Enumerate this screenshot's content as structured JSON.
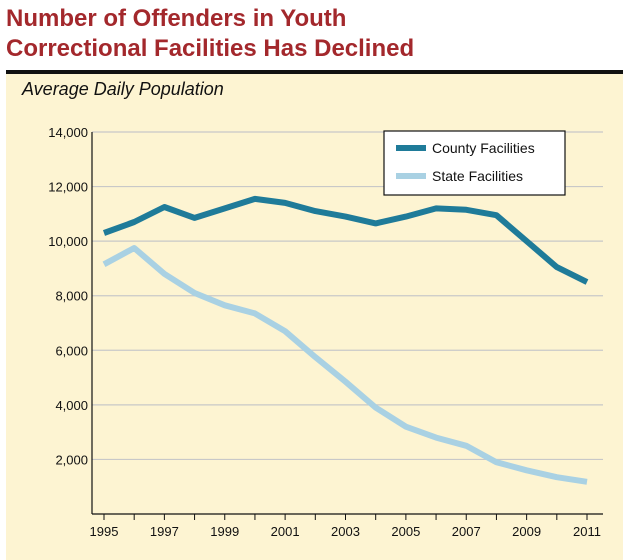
{
  "header": {
    "title_line1": "Number of Offenders in Youth",
    "title_line2": "Correctional Facilities Has Declined"
  },
  "colors": {
    "title": "#a3282c",
    "background": "#fdf4d2",
    "county": "#1f7b99",
    "state": "#a9d1e3",
    "grid": "#c8c8c8"
  },
  "chart_data": {
    "type": "line",
    "title": "Average Daily Population",
    "xlabel": "",
    "ylabel": "",
    "x": [
      1995,
      1996,
      1997,
      1998,
      1999,
      2000,
      2001,
      2002,
      2003,
      2004,
      2005,
      2006,
      2007,
      2008,
      2009,
      2010,
      2011
    ],
    "xticks": [
      "1995",
      "1997",
      "1999",
      "2001",
      "2003",
      "2005",
      "2007",
      "2009",
      "2011"
    ],
    "yticks": [
      "2,000",
      "4,000",
      "6,000",
      "8,000",
      "10,000",
      "12,000",
      "14,000"
    ],
    "ylim": [
      0,
      14000
    ],
    "grid": true,
    "legend_position": "top-right",
    "series": [
      {
        "name": "County Facilities",
        "color": "#1f7b99",
        "values": [
          10300,
          10700,
          11250,
          10850,
          11200,
          11550,
          11400,
          11100,
          10900,
          10650,
          10900,
          11200,
          11150,
          10950,
          10000,
          9050,
          8500
        ]
      },
      {
        "name": "State Facilities",
        "color": "#a9d1e3",
        "values": [
          9150,
          9750,
          8800,
          8100,
          7650,
          7350,
          6700,
          5750,
          4850,
          3900,
          3200,
          2800,
          2500,
          1900,
          1600,
          1350,
          1180
        ]
      }
    ]
  }
}
